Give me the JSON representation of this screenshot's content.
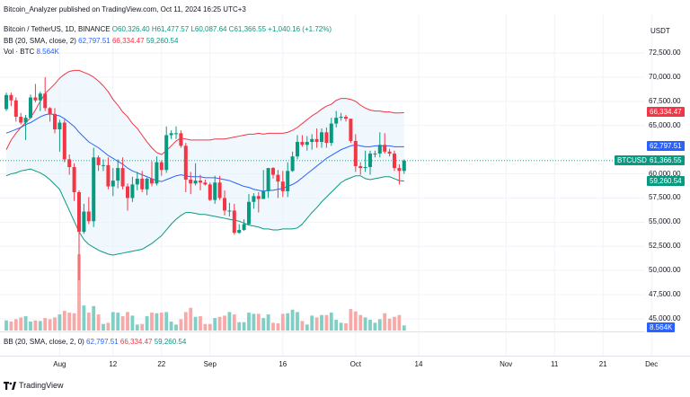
{
  "publisher": "Bitcoin_Analyzer published on TradingView.com, Oct 11, 2024 16:25 UTC+3",
  "legend": {
    "symbol": "Bitcoin / TetherUS, 1D, BINANCE",
    "ohlc": "O60,326.40 H61,477.57 L60,087.64 C61,366.55 +1,040.16 (+1.72%)",
    "bb_label": "BB (20, SMA, close, 2)",
    "bb_basis": "62,797.51",
    "bb_upper": "66,334.47",
    "bb_lower": "59,260.54",
    "vol_label": "Vol · BTC",
    "vol_value": "8.564K"
  },
  "sub_legend": {
    "label": "BB (20, SMA, close, 2, 0)",
    "basis": "62,797.51",
    "upper": "66,334.47",
    "lower": "59,260.54"
  },
  "axis": {
    "currency": "USDT",
    "ticks": [
      "72,500.00",
      "70,000.00",
      "67,500.00",
      "65,000.00",
      "60,000.00",
      "57,500.00",
      "55,000.00",
      "52,500.00",
      "50,000.00",
      "47,500.00",
      "45,000.00"
    ],
    "tick_values": [
      72500,
      70000,
      67500,
      65000,
      60000,
      57500,
      55000,
      52500,
      50000,
      47500,
      45000
    ],
    "x_ticks": [
      "Aug",
      "12",
      "22",
      "Sep",
      "16",
      "Oct",
      "14",
      "Nov",
      "11",
      "21",
      "Dec"
    ]
  },
  "price_tags": {
    "upper": {
      "value": 66334.47,
      "label": "66,334.47",
      "color": "#f23645"
    },
    "basis": {
      "value": 62797.51,
      "label": "62,797.51",
      "color": "#2962ff"
    },
    "symbol": {
      "label": "BTCUSDT",
      "color": "#089981"
    },
    "last": {
      "value": 61366.55,
      "label": "61,366.55",
      "color": "#089981"
    },
    "lower": {
      "value": 59260.54,
      "label": "59,260.54",
      "color": "#089981"
    },
    "volume": {
      "label": "8.564K",
      "color": "#2962ff"
    }
  },
  "footer": {
    "brand": "TradingView"
  },
  "colors": {
    "up": "#089981",
    "down": "#f23645",
    "basis": "#2962ff",
    "band_fill": "#e3f2fd"
  },
  "chart_data": {
    "type": "candlestick",
    "xlabel": "",
    "ylabel": "",
    "dates": [
      "Jul 21",
      "Jul 22",
      "Jul 23",
      "Jul 24",
      "Jul 25",
      "Jul 26",
      "Jul 27",
      "Jul 28",
      "Jul 29",
      "Jul 30",
      "Jul 31",
      "Aug 1",
      "Aug 2",
      "Aug 3",
      "Aug 4",
      "Aug 5",
      "Aug 6",
      "Aug 7",
      "Aug 8",
      "Aug 9",
      "Aug 10",
      "Aug 11",
      "Aug 12",
      "Aug 13",
      "Aug 14",
      "Aug 15",
      "Aug 16",
      "Aug 17",
      "Aug 18",
      "Aug 19",
      "Aug 20",
      "Aug 21",
      "Aug 22",
      "Aug 23",
      "Aug 24",
      "Aug 25",
      "Aug 26",
      "Aug 27",
      "Aug 28",
      "Aug 29",
      "Aug 30",
      "Aug 31",
      "Sep 1",
      "Sep 2",
      "Sep 3",
      "Sep 4",
      "Sep 5",
      "Sep 6",
      "Sep 7",
      "Sep 8",
      "Sep 9",
      "Sep 10",
      "Sep 11",
      "Sep 12",
      "Sep 13",
      "Sep 14",
      "Sep 15",
      "Sep 16",
      "Sep 17",
      "Sep 18",
      "Sep 19",
      "Sep 20",
      "Sep 21",
      "Sep 22",
      "Sep 23",
      "Sep 24",
      "Sep 25",
      "Sep 26",
      "Sep 27",
      "Sep 28",
      "Sep 29",
      "Sep 30",
      "Oct 1",
      "Oct 2",
      "Oct 3",
      "Oct 4",
      "Oct 5",
      "Oct 6",
      "Oct 7",
      "Oct 8",
      "Oct 9",
      "Oct 10",
      "Oct 11"
    ],
    "open": [
      66700,
      68150,
      67600,
      65900,
      65300,
      65800,
      67900,
      67600,
      68300,
      66800,
      66200,
      64600,
      65300,
      61500,
      60700,
      58100,
      54000,
      56100,
      55100,
      61700,
      60900,
      60900,
      58700,
      59300,
      60600,
      58700,
      57500,
      58900,
      59500,
      58400,
      59500,
      59000,
      61200,
      60400,
      64000,
      64200,
      64200,
      62900,
      59400,
      59000,
      59300,
      59100,
      58900,
      57300,
      59100,
      57500,
      56200,
      56200,
      53900,
      54200,
      54800,
      57100,
      57700,
      57400,
      58200,
      60600,
      59900,
      59200,
      58200,
      60300,
      61800,
      63300,
      63000,
      63300,
      63600,
      63300,
      64300,
      63200,
      65200,
      65800,
      65900,
      65700,
      63400,
      60800,
      60600,
      60700,
      62100,
      62100,
      63000,
      62300,
      62100,
      60600,
      60300
    ],
    "close": [
      68150,
      67600,
      65900,
      65300,
      65800,
      67900,
      67600,
      68300,
      66800,
      66200,
      64600,
      65300,
      61500,
      60700,
      58100,
      54000,
      56100,
      55100,
      61700,
      60900,
      60900,
      58700,
      59300,
      60600,
      58700,
      57500,
      58900,
      59500,
      58400,
      59500,
      59000,
      61200,
      60400,
      64000,
      64200,
      64200,
      62900,
      59400,
      59000,
      59300,
      59100,
      58900,
      57300,
      59100,
      57500,
      56200,
      56200,
      53900,
      54200,
      54800,
      57100,
      57700,
      57400,
      58200,
      60600,
      59900,
      59200,
      58200,
      60300,
      61800,
      63300,
      63000,
      63300,
      63600,
      63300,
      64300,
      63200,
      65200,
      65800,
      65900,
      65700,
      63400,
      60800,
      60600,
      60700,
      62100,
      62100,
      63000,
      62300,
      62100,
      60600,
      60300,
      61366.55
    ],
    "high": [
      68400,
      68400,
      67900,
      66300,
      66100,
      68200,
      69300,
      68500,
      70000,
      66900,
      66800,
      65600,
      65600,
      62000,
      61100,
      58300,
      56900,
      57600,
      62700,
      61900,
      61500,
      61700,
      60600,
      61500,
      61700,
      59000,
      59700,
      60200,
      60300,
      59600,
      61300,
      61800,
      61400,
      64900,
      64500,
      64900,
      64500,
      63200,
      60200,
      61100,
      59900,
      59400,
      59100,
      59800,
      59800,
      58300,
      57000,
      56900,
      54800,
      55300,
      57900,
      58000,
      58100,
      60400,
      60600,
      60700,
      60400,
      60300,
      61200,
      62300,
      64000,
      64000,
      63900,
      64100,
      64700,
      64700,
      64800,
      65800,
      66500,
      66300,
      66100,
      65700,
      64100,
      61200,
      62400,
      62400,
      62400,
      64300,
      64200,
      62600,
      62400,
      61000,
      61500
    ],
    "low": [
      66500,
      67000,
      65400,
      65100,
      63500,
      65700,
      67400,
      66500,
      66500,
      65400,
      64200,
      62300,
      61200,
      59900,
      57200,
      49000,
      53800,
      54800,
      54500,
      60300,
      60300,
      58400,
      57700,
      58500,
      58400,
      56200,
      57100,
      58300,
      58100,
      57800,
      58700,
      58800,
      59800,
      60100,
      63600,
      63600,
      62700,
      58100,
      57900,
      58800,
      58300,
      58800,
      57200,
      56900,
      57300,
      55700,
      55600,
      53700,
      53800,
      54100,
      54700,
      56400,
      56000,
      57400,
      57500,
      59500,
      57500,
      57600,
      57600,
      60200,
      61500,
      62800,
      62400,
      62500,
      62700,
      62700,
      62700,
      62900,
      64800,
      65500,
      65400,
      63200,
      60200,
      59900,
      60200,
      59900,
      61700,
      61700,
      62100,
      61800,
      60300,
      58900,
      60000
    ],
    "volume": [
      17000,
      15000,
      19000,
      22000,
      24000,
      15000,
      17000,
      16000,
      21000,
      19000,
      22000,
      27000,
      33000,
      30000,
      29000,
      128000,
      42000,
      30000,
      41000,
      27000,
      11000,
      13000,
      31000,
      30000,
      24000,
      31000,
      25000,
      10000,
      11000,
      24000,
      30000,
      29000,
      30000,
      31000,
      15000,
      10000,
      19000,
      31000,
      38000,
      23000,
      24000,
      11000,
      11000,
      21000,
      23000,
      25000,
      31000,
      27000,
      14000,
      14000,
      30000,
      28000,
      28000,
      21000,
      27000,
      13000,
      12000,
      28000,
      29000,
      35000,
      31000,
      16000,
      10000,
      25000,
      22000,
      26000,
      26000,
      30000,
      18000,
      13000,
      12000,
      36000,
      32000,
      26000,
      22000,
      18000,
      13000,
      19000,
      29000,
      20000,
      23000,
      26000,
      8564
    ],
    "bb_upper": [
      62500,
      63500,
      64200,
      64800,
      65300,
      65800,
      66600,
      67500,
      68300,
      68800,
      69300,
      69900,
      70300,
      70600,
      70700,
      70700,
      70500,
      70300,
      70000,
      69600,
      69100,
      68500,
      67700,
      67100,
      66400,
      65900,
      65200,
      64700,
      64000,
      63300,
      62700,
      62200,
      62000,
      62400,
      62900,
      63400,
      63700,
      63600,
      63500,
      63500,
      63500,
      63500,
      63500,
      63600,
      63600,
      63600,
      63700,
      63800,
      63900,
      64000,
      64100,
      64100,
      64200,
      64100,
      64200,
      64200,
      64200,
      64200,
      64300,
      64500,
      64800,
      65200,
      65600,
      66000,
      66300,
      66700,
      67000,
      67200,
      67600,
      67800,
      67800,
      67700,
      67500,
      67100,
      66800,
      66600,
      66500,
      66500,
      66400,
      66400,
      66300,
      66300,
      66334.47
    ],
    "bb_basis": [
      64200,
      64400,
      64600,
      64800,
      65100,
      65300,
      65600,
      65900,
      66100,
      66200,
      66100,
      66000,
      65700,
      65300,
      64900,
      64300,
      63800,
      63300,
      63000,
      62700,
      62300,
      61900,
      61600,
      61300,
      61000,
      60600,
      60300,
      60100,
      59900,
      59700,
      59500,
      59300,
      59200,
      59400,
      59600,
      59800,
      59900,
      59800,
      59700,
      59700,
      59700,
      59600,
      59600,
      59600,
      59500,
      59400,
      59300,
      59100,
      58900,
      58700,
      58600,
      58400,
      58300,
      58200,
      58300,
      58300,
      58400,
      58500,
      58700,
      58900,
      59200,
      59600,
      60000,
      60400,
      60800,
      61200,
      61600,
      61900,
      62200,
      62500,
      62700,
      62900,
      63000,
      62900,
      62800,
      62800,
      62900,
      62900,
      62900,
      62900,
      62800,
      62800,
      62797.51
    ],
    "bb_lower": [
      59800,
      60000,
      60100,
      60300,
      60400,
      60500,
      60300,
      60100,
      59800,
      59400,
      58900,
      58400,
      57300,
      56200,
      55100,
      54000,
      53200,
      52700,
      52400,
      52100,
      51900,
      51700,
      51600,
      51700,
      51800,
      51900,
      52000,
      52100,
      52200,
      52500,
      52800,
      53200,
      53600,
      54200,
      54800,
      55300,
      55700,
      56000,
      56000,
      55900,
      55800,
      55800,
      55700,
      55600,
      55500,
      55400,
      55300,
      55200,
      55100,
      54900,
      54700,
      54600,
      54500,
      54300,
      54300,
      54200,
      54200,
      54300,
      54300,
      54300,
      54400,
      54800,
      55400,
      56000,
      56500,
      57100,
      57600,
      58100,
      58600,
      59100,
      59400,
      59600,
      59800,
      59800,
      59500,
      59400,
      59500,
      59600,
      59700,
      59700,
      59500,
      59300,
      59260.54
    ]
  }
}
